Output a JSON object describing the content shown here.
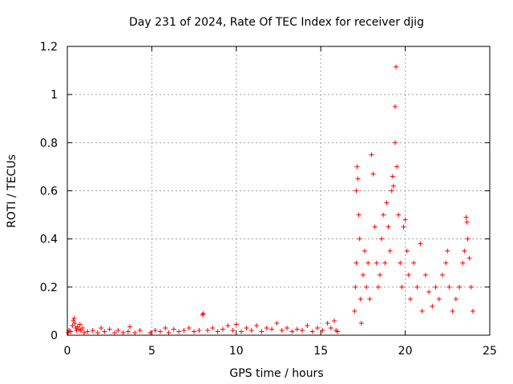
{
  "chart_data": {
    "type": "scatter",
    "title": "Day 231 of 2024, Rate Of TEC Index for receiver djig",
    "xlabel": "GPS time / hours",
    "ylabel": "ROTI / TECUs",
    "xlim": [
      0,
      25
    ],
    "ylim": [
      0,
      1.2
    ],
    "x_ticks": [
      "0",
      "5",
      "10",
      "15",
      "20",
      "25"
    ],
    "y_ticks": [
      "0",
      "0.2",
      "0.4",
      "0.6",
      "0.8",
      "1",
      "1.2"
    ],
    "x_tick_values": [
      0,
      5,
      10,
      15,
      20,
      25
    ],
    "y_tick_values": [
      0,
      0.2,
      0.4,
      0.6,
      0.8,
      1.0,
      1.2
    ],
    "grid": true,
    "marker": "plus",
    "series": [
      {
        "color": "#ff0000",
        "points": [
          [
            0.05,
            0.01
          ],
          [
            0.1,
            0.02
          ],
          [
            0.2,
            0.015
          ],
          [
            0.3,
            0.04
          ],
          [
            0.35,
            0.06
          ],
          [
            0.4,
            0.07
          ],
          [
            0.45,
            0.05
          ],
          [
            0.5,
            0.03
          ],
          [
            0.55,
            0.02
          ],
          [
            0.6,
            0.035
          ],
          [
            0.7,
            0.025
          ],
          [
            0.75,
            0.045
          ],
          [
            0.8,
            0.02
          ],
          [
            0.9,
            0.03
          ],
          [
            1.0,
            0.01
          ],
          [
            1.2,
            0.015
          ],
          [
            1.5,
            0.02
          ],
          [
            1.8,
            0.01
          ],
          [
            2.0,
            0.03
          ],
          [
            2.2,
            0.015
          ],
          [
            2.5,
            0.025
          ],
          [
            2.8,
            0.01
          ],
          [
            3.0,
            0.02
          ],
          [
            3.3,
            0.01
          ],
          [
            3.6,
            0.015
          ],
          [
            3.7,
            0.035
          ],
          [
            4.0,
            0.01
          ],
          [
            4.3,
            0.02
          ],
          [
            4.9,
            0.01
          ],
          [
            5.2,
            0.02
          ],
          [
            5.5,
            0.015
          ],
          [
            5.8,
            0.03
          ],
          [
            6.0,
            0.01
          ],
          [
            6.3,
            0.025
          ],
          [
            6.6,
            0.015
          ],
          [
            6.9,
            0.02
          ],
          [
            7.2,
            0.03
          ],
          [
            7.5,
            0.015
          ],
          [
            7.8,
            0.02
          ],
          [
            8.0,
            0.085
          ],
          [
            8.05,
            0.09
          ],
          [
            8.3,
            0.02
          ],
          [
            8.6,
            0.03
          ],
          [
            8.9,
            0.015
          ],
          [
            9.2,
            0.025
          ],
          [
            9.5,
            0.04
          ],
          [
            9.8,
            0.02
          ],
          [
            10.0,
            0.045
          ],
          [
            10.3,
            0.015
          ],
          [
            10.6,
            0.03
          ],
          [
            10.9,
            0.02
          ],
          [
            11.2,
            0.04
          ],
          [
            11.5,
            0.015
          ],
          [
            11.8,
            0.03
          ],
          [
            12.1,
            0.025
          ],
          [
            12.4,
            0.05
          ],
          [
            12.7,
            0.02
          ],
          [
            13.0,
            0.03
          ],
          [
            13.3,
            0.015
          ],
          [
            13.6,
            0.025
          ],
          [
            13.9,
            0.02
          ],
          [
            14.2,
            0.04
          ],
          [
            14.5,
            0.015
          ],
          [
            14.8,
            0.03
          ],
          [
            15.1,
            0.02
          ],
          [
            15.4,
            0.05
          ],
          [
            15.6,
            0.03
          ],
          [
            15.8,
            0.06
          ],
          [
            15.9,
            0.02
          ],
          [
            16.0,
            0.015
          ],
          [
            17.0,
            0.1
          ],
          [
            17.05,
            0.2
          ],
          [
            17.1,
            0.3
          ],
          [
            17.1,
            0.6
          ],
          [
            17.15,
            0.7
          ],
          [
            17.2,
            0.65
          ],
          [
            17.25,
            0.5
          ],
          [
            17.3,
            0.4
          ],
          [
            17.35,
            0.15
          ],
          [
            17.4,
            0.05
          ],
          [
            17.5,
            0.25
          ],
          [
            17.6,
            0.35
          ],
          [
            17.7,
            0.2
          ],
          [
            17.8,
            0.3
          ],
          [
            17.9,
            0.15
          ],
          [
            18.0,
            0.75
          ],
          [
            18.1,
            0.67
          ],
          [
            18.2,
            0.45
          ],
          [
            18.3,
            0.3
          ],
          [
            18.4,
            0.2
          ],
          [
            18.5,
            0.25
          ],
          [
            18.6,
            0.4
          ],
          [
            18.7,
            0.5
          ],
          [
            18.8,
            0.3
          ],
          [
            18.9,
            0.55
          ],
          [
            19.0,
            0.45
          ],
          [
            19.1,
            0.35
          ],
          [
            19.2,
            0.6
          ],
          [
            19.25,
            0.66
          ],
          [
            19.3,
            0.62
          ],
          [
            19.4,
            0.8
          ],
          [
            19.4,
            0.95
          ],
          [
            19.45,
            1.115
          ],
          [
            19.5,
            0.7
          ],
          [
            19.6,
            0.5
          ],
          [
            19.7,
            0.3
          ],
          [
            19.8,
            0.2
          ],
          [
            19.9,
            0.45
          ],
          [
            20.0,
            0.48
          ],
          [
            20.1,
            0.35
          ],
          [
            20.2,
            0.25
          ],
          [
            20.3,
            0.15
          ],
          [
            20.5,
            0.3
          ],
          [
            20.7,
            0.2
          ],
          [
            20.9,
            0.38
          ],
          [
            21.0,
            0.1
          ],
          [
            21.2,
            0.25
          ],
          [
            21.4,
            0.18
          ],
          [
            21.6,
            0.12
          ],
          [
            21.8,
            0.2
          ],
          [
            22.0,
            0.15
          ],
          [
            22.2,
            0.25
          ],
          [
            22.4,
            0.3
          ],
          [
            22.5,
            0.35
          ],
          [
            22.6,
            0.2
          ],
          [
            22.8,
            0.1
          ],
          [
            23.0,
            0.15
          ],
          [
            23.2,
            0.2
          ],
          [
            23.4,
            0.3
          ],
          [
            23.5,
            0.35
          ],
          [
            23.6,
            0.49
          ],
          [
            23.65,
            0.47
          ],
          [
            23.7,
            0.4
          ],
          [
            23.8,
            0.32
          ],
          [
            23.9,
            0.2
          ],
          [
            24.0,
            0.1
          ]
        ]
      }
    ]
  }
}
